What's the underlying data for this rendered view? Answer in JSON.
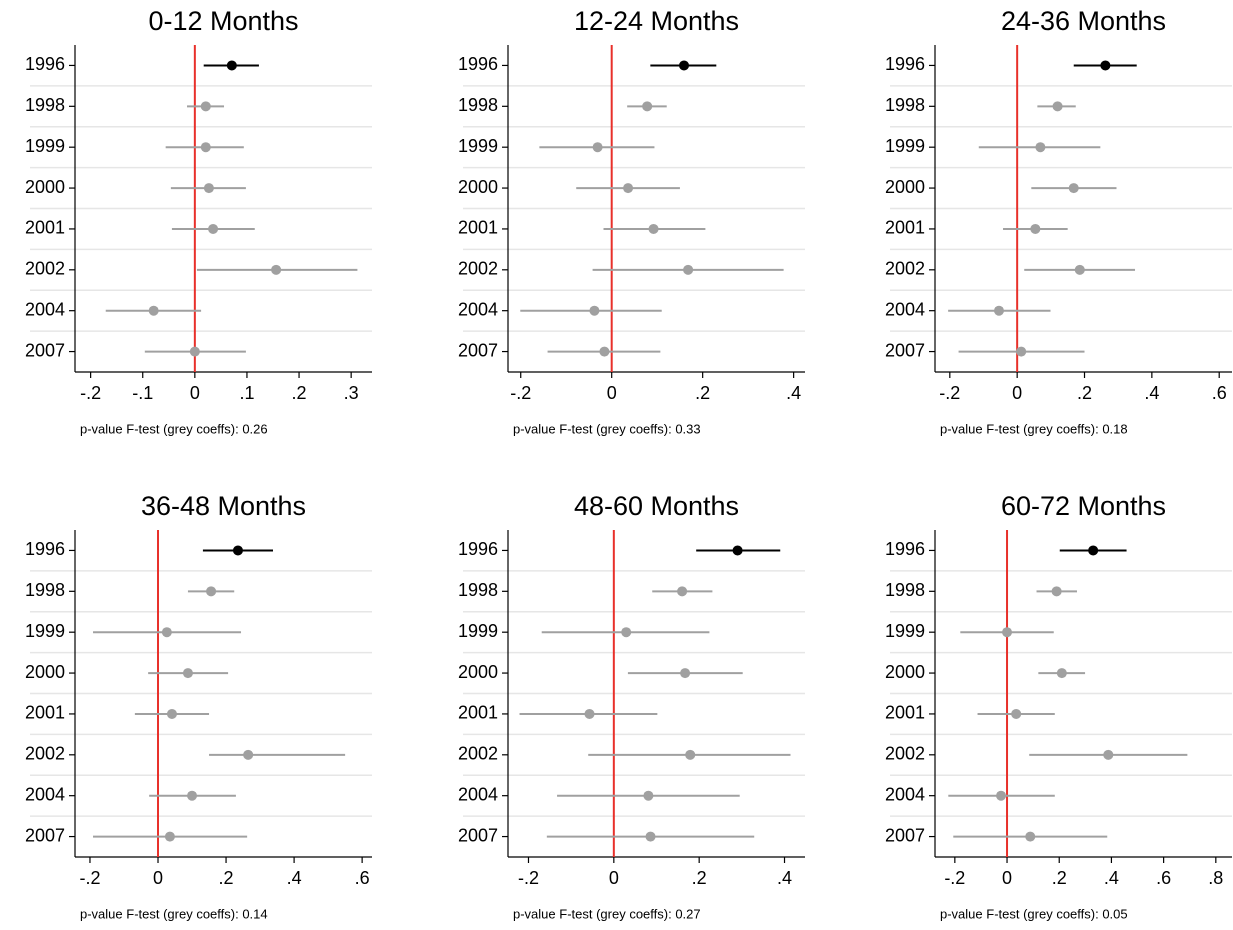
{
  "chart_data": [
    {
      "type": "coefplot",
      "title": "0-12 Months",
      "note": "p-value F-test (grey coeffs): 0.26",
      "categories": [
        "1996",
        "1998",
        "1999",
        "2000",
        "2001",
        "2002",
        "2004",
        "2007"
      ],
      "values": [
        0.071,
        0.021,
        0.021,
        0.027,
        0.035,
        0.156,
        -0.079,
        0.0
      ],
      "ci_low": [
        0.017,
        -0.015,
        -0.056,
        -0.046,
        -0.044,
        0.004,
        -0.171,
        -0.096
      ],
      "ci_high": [
        0.123,
        0.056,
        0.094,
        0.098,
        0.115,
        0.312,
        0.012,
        0.098
      ],
      "point_colors": [
        "#000000",
        "#a0a0a0",
        "#a0a0a0",
        "#a0a0a0",
        "#a0a0a0",
        "#a0a0a0",
        "#a0a0a0",
        "#a0a0a0"
      ],
      "xlim": [
        -0.23,
        0.34
      ],
      "xticks": [
        {
          "value": -0.2,
          "label": "-.2"
        },
        {
          "value": -0.1,
          "label": "-.1"
        },
        0,
        {
          "value": 0.1,
          "label": ".1"
        },
        {
          "value": 0.2,
          "label": ".2"
        },
        {
          "value": 0.3,
          "label": ".3"
        }
      ],
      "ref_line": {
        "value": 0,
        "color": "#e8302a"
      }
    },
    {
      "type": "coefplot",
      "title": "12-24 Months",
      "note": "p-value F-test (grey coeffs): 0.33",
      "categories": [
        "1996",
        "1998",
        "1999",
        "2000",
        "2001",
        "2002",
        "2004",
        "2007"
      ],
      "values": [
        0.159,
        0.078,
        -0.031,
        0.036,
        0.092,
        0.168,
        -0.038,
        -0.016
      ],
      "ci_low": [
        0.085,
        0.034,
        -0.159,
        -0.078,
        -0.018,
        -0.042,
        -0.201,
        -0.141
      ],
      "ci_high": [
        0.23,
        0.121,
        0.094,
        0.15,
        0.206,
        0.378,
        0.11,
        0.107
      ],
      "point_colors": [
        "#000000",
        "#a0a0a0",
        "#a0a0a0",
        "#a0a0a0",
        "#a0a0a0",
        "#a0a0a0",
        "#a0a0a0",
        "#a0a0a0"
      ],
      "xlim": [
        -0.228,
        0.425
      ],
      "xticks": [
        {
          "value": -0.2,
          "label": "-.2"
        },
        0,
        {
          "value": 0.2,
          "label": ".2"
        },
        {
          "value": 0.4,
          "label": ".4"
        }
      ],
      "ref_line": {
        "value": 0,
        "color": "#e8302a"
      }
    },
    {
      "type": "coefplot",
      "title": "24-36 Months",
      "note": "p-value F-test (grey coeffs): 0.18",
      "categories": [
        "1996",
        "1998",
        "1999",
        "2000",
        "2001",
        "2002",
        "2004",
        "2007"
      ],
      "values": [
        0.262,
        0.12,
        0.069,
        0.168,
        0.054,
        0.186,
        -0.054,
        0.012
      ],
      "ci_low": [
        0.168,
        0.06,
        -0.114,
        0.042,
        -0.042,
        0.021,
        -0.205,
        -0.174
      ],
      "ci_high": [
        0.355,
        0.174,
        0.247,
        0.295,
        0.15,
        0.35,
        0.099,
        0.2
      ],
      "point_colors": [
        "#000000",
        "#a0a0a0",
        "#a0a0a0",
        "#a0a0a0",
        "#a0a0a0",
        "#a0a0a0",
        "#a0a0a0",
        "#a0a0a0"
      ],
      "xlim": [
        -0.244,
        0.638
      ],
      "xticks": [
        {
          "value": -0.2,
          "label": "-.2"
        },
        0,
        {
          "value": 0.2,
          "label": ".2"
        },
        {
          "value": 0.4,
          "label": ".4"
        },
        {
          "value": 0.6,
          "label": ".6"
        }
      ],
      "ref_line": {
        "value": 0,
        "color": "#e8302a"
      }
    },
    {
      "type": "coefplot",
      "title": "36-48 Months",
      "note": "p-value F-test (grey coeffs): 0.14",
      "categories": [
        "1996",
        "1998",
        "1999",
        "2000",
        "2001",
        "2002",
        "2004",
        "2007"
      ],
      "values": [
        0.235,
        0.156,
        0.026,
        0.088,
        0.041,
        0.265,
        0.1,
        0.035
      ],
      "ci_low": [
        0.132,
        0.088,
        -0.191,
        -0.029,
        -0.068,
        0.15,
        -0.026,
        -0.191
      ],
      "ci_high": [
        0.338,
        0.224,
        0.244,
        0.206,
        0.15,
        0.55,
        0.229,
        0.262
      ],
      "point_colors": [
        "#000000",
        "#a0a0a0",
        "#a0a0a0",
        "#a0a0a0",
        "#a0a0a0",
        "#a0a0a0",
        "#a0a0a0",
        "#a0a0a0"
      ],
      "xlim": [
        -0.244,
        0.629
      ],
      "xticks": [
        {
          "value": -0.2,
          "label": "-.2"
        },
        0,
        {
          "value": 0.2,
          "label": ".2"
        },
        {
          "value": 0.4,
          "label": ".4"
        },
        {
          "value": 0.6,
          "label": ".6"
        }
      ],
      "ref_line": {
        "value": 0,
        "color": "#e8302a"
      }
    },
    {
      "type": "coefplot",
      "title": "48-60 Months",
      "note": "p-value F-test (grey coeffs): 0.27",
      "categories": [
        "1996",
        "1998",
        "1999",
        "2000",
        "2001",
        "2002",
        "2004",
        "2007"
      ],
      "values": [
        0.29,
        0.16,
        0.029,
        0.167,
        -0.057,
        0.179,
        0.081,
        0.086
      ],
      "ci_low": [
        0.193,
        0.09,
        -0.169,
        0.033,
        -0.221,
        -0.06,
        -0.133,
        -0.157
      ],
      "ci_high": [
        0.39,
        0.231,
        0.224,
        0.302,
        0.102,
        0.414,
        0.295,
        0.329
      ],
      "point_colors": [
        "#000000",
        "#a0a0a0",
        "#a0a0a0",
        "#a0a0a0",
        "#a0a0a0",
        "#a0a0a0",
        "#a0a0a0",
        "#a0a0a0"
      ],
      "xlim": [
        -0.248,
        0.448
      ],
      "xticks": [
        {
          "value": -0.2,
          "label": "-.2"
        },
        0,
        {
          "value": 0.2,
          "label": ".2"
        },
        {
          "value": 0.4,
          "label": ".4"
        }
      ],
      "ref_line": {
        "value": 0,
        "color": "#e8302a"
      }
    },
    {
      "type": "coefplot",
      "title": "60-72 Months",
      "note": "p-value F-test (grey coeffs): 0.05",
      "categories": [
        "1996",
        "1998",
        "1999",
        "2000",
        "2001",
        "2002",
        "2004",
        "2007"
      ],
      "values": [
        0.33,
        0.19,
        0.0,
        0.21,
        0.035,
        0.388,
        -0.023,
        0.089
      ],
      "ci_low": [
        0.202,
        0.113,
        -0.179,
        0.12,
        -0.113,
        0.085,
        -0.225,
        -0.206
      ],
      "ci_high": [
        0.458,
        0.268,
        0.179,
        0.299,
        0.183,
        0.691,
        0.183,
        0.384
      ],
      "point_colors": [
        "#000000",
        "#a0a0a0",
        "#a0a0a0",
        "#a0a0a0",
        "#a0a0a0",
        "#a0a0a0",
        "#a0a0a0",
        "#a0a0a0"
      ],
      "xlim": [
        -0.276,
        0.862
      ],
      "xticks": [
        {
          "value": -0.2,
          "label": "-.2"
        },
        0,
        {
          "value": 0.2,
          "label": ".2"
        },
        {
          "value": 0.4,
          "label": ".4"
        },
        {
          "value": 0.6,
          "label": ".6"
        },
        {
          "value": 0.8,
          "label": ".8"
        }
      ],
      "ref_line": {
        "value": 0,
        "color": "#e8302a"
      }
    }
  ]
}
